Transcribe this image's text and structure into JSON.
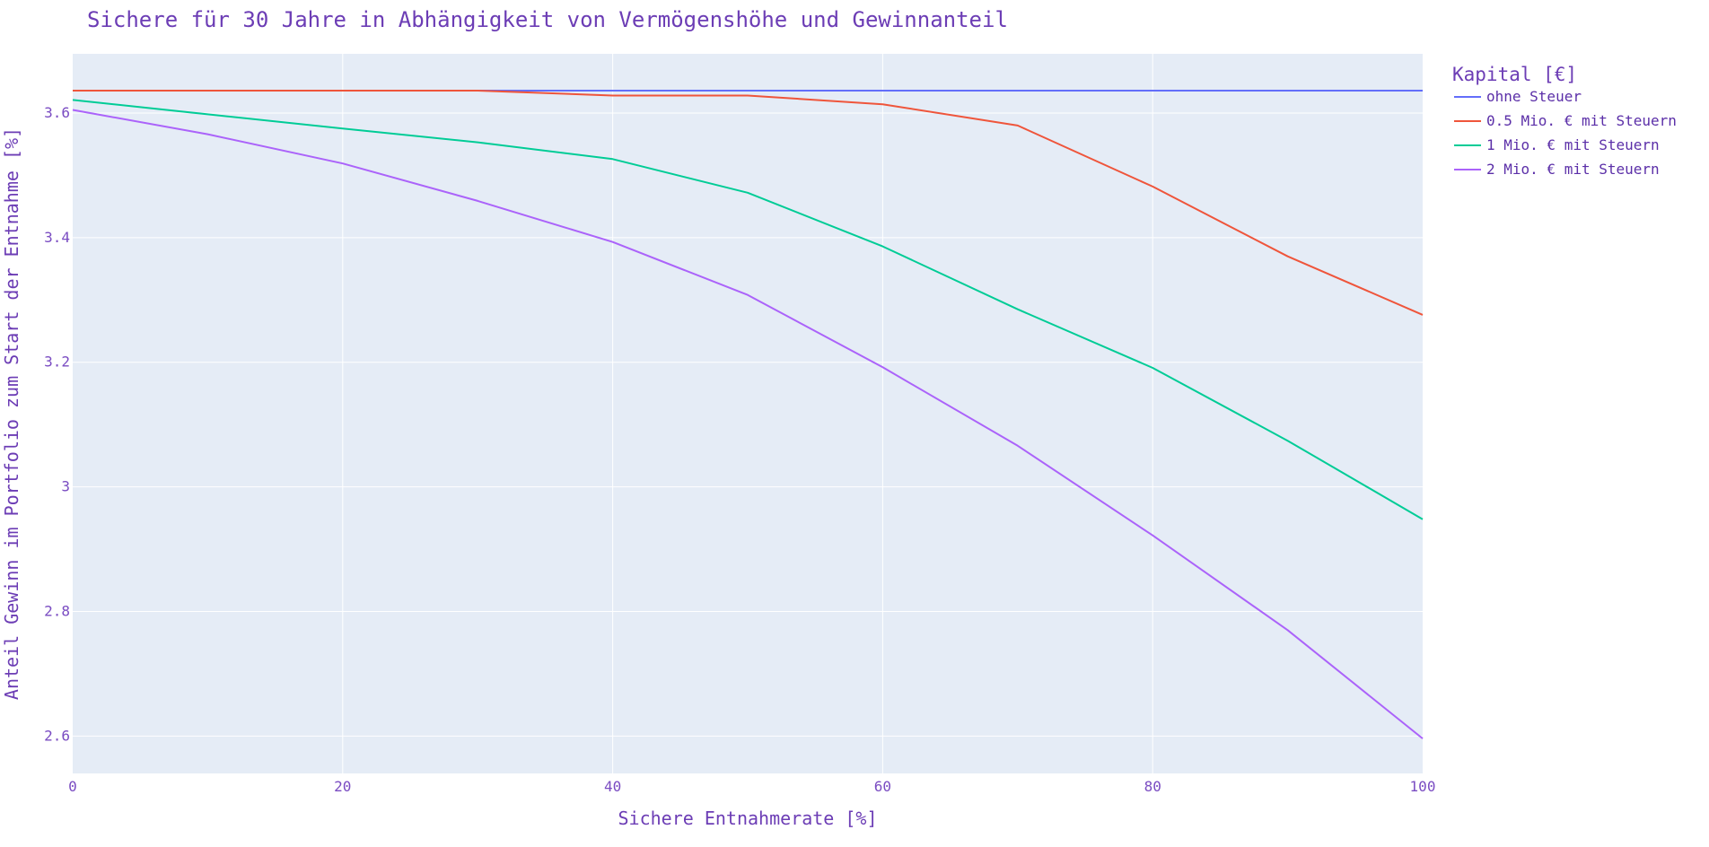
{
  "chart_data": {
    "type": "line",
    "title": "Sichere für 30 Jahre in Abhängigkeit von Vermögenshöhe und Gewinnanteil",
    "xlabel": "Sichere Entnahmerate [%]",
    "ylabel": "Anteil Gewinn im Portfolio zum Start der Entnahme [%]",
    "xlim": [
      0,
      100
    ],
    "ylim": [
      2.54,
      3.695
    ],
    "x_ticks": [
      "0",
      "20",
      "40",
      "60",
      "80",
      "100"
    ],
    "x_tick_values": [
      0,
      20,
      40,
      60,
      80,
      100
    ],
    "y_ticks": [
      "2.6",
      "2.8",
      "3",
      "3.2",
      "3.4",
      "3.6"
    ],
    "y_tick_values": [
      2.6,
      2.8,
      3.0,
      3.2,
      3.4,
      3.6
    ],
    "grid": true,
    "legend": {
      "title": "Kapital [€]",
      "position": "right"
    },
    "x": [
      0,
      10,
      20,
      30,
      40,
      50,
      60,
      70,
      80,
      90,
      100
    ],
    "series": [
      {
        "name": "ohne Steuer",
        "color": "#636efa",
        "values": [
          3.636,
          3.636,
          3.636,
          3.636,
          3.636,
          3.636,
          3.636,
          3.636,
          3.636,
          3.636,
          3.636
        ]
      },
      {
        "name": "0.5 Mio. € mit Steuern",
        "color": "#ef553b",
        "values": [
          3.636,
          3.636,
          3.636,
          3.636,
          3.628,
          3.628,
          3.614,
          3.58,
          3.482,
          3.37,
          3.276
        ]
      },
      {
        "name": "1 Mio. € mit Steuern",
        "color": "#00cc96",
        "values": [
          3.621,
          3.598,
          3.575,
          3.553,
          3.526,
          3.472,
          3.386,
          3.285,
          3.191,
          3.074,
          2.948
        ]
      },
      {
        "name": "2 Mio. € mit Steuern",
        "color": "#ab63fa",
        "values": [
          3.605,
          3.566,
          3.519,
          3.459,
          3.393,
          3.308,
          3.192,
          3.066,
          2.922,
          2.77,
          2.596
        ]
      }
    ],
    "plot_bg": "#e5ecf6",
    "grid_color": "#ffffff",
    "text_color": "#6c3db5"
  }
}
